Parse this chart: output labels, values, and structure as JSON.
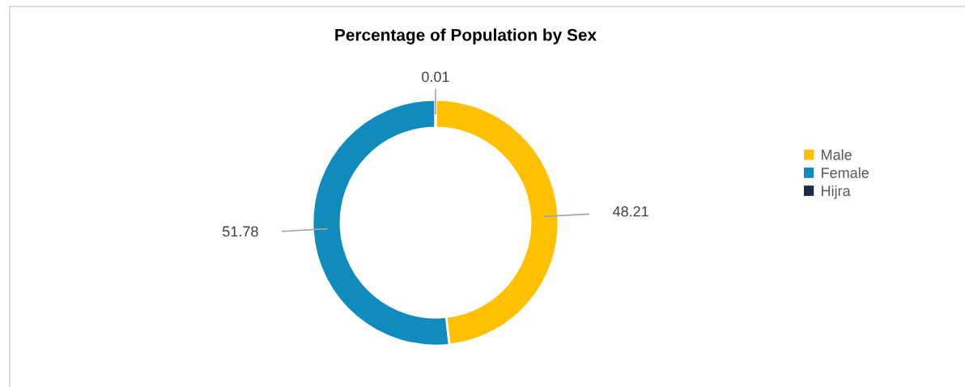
{
  "chart_data": {
    "type": "donut",
    "title": "Percentage of Population by Sex",
    "categories": [
      "Male",
      "Female",
      "Hijra"
    ],
    "values": [
      48.21,
      51.78,
      0.01
    ],
    "colors": [
      "#ffc000",
      "#0f8bbd",
      "#1f2d44"
    ],
    "data_labels": true,
    "legend": "right"
  }
}
